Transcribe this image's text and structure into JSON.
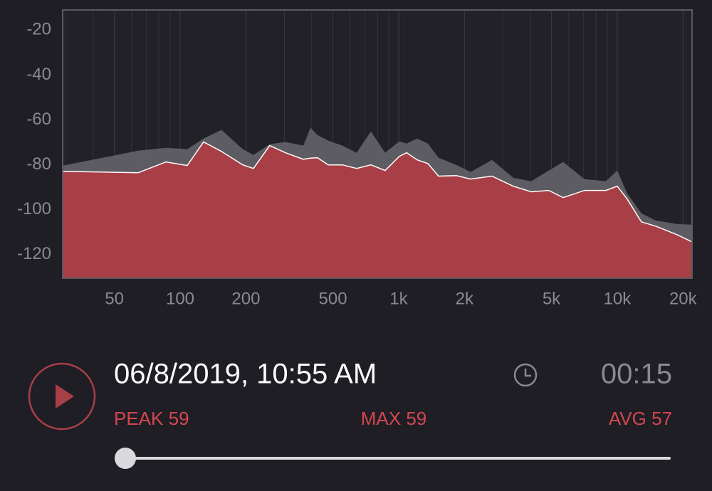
{
  "chart_data": {
    "type": "area",
    "xscale": "log",
    "xgrid": true,
    "ygrid": false,
    "xlim": [
      29,
      22000
    ],
    "ylim": [
      -130.5,
      -11
    ],
    "xticks": [
      {
        "value": 50,
        "label": "50"
      },
      {
        "value": 100,
        "label": "100"
      },
      {
        "value": 200,
        "label": "200"
      },
      {
        "value": 500,
        "label": "500"
      },
      {
        "value": 1000,
        "label": "1k"
      },
      {
        "value": 2000,
        "label": "2k"
      },
      {
        "value": 5000,
        "label": "5k"
      },
      {
        "value": 10000,
        "label": "10k"
      },
      {
        "value": 20000,
        "label": "20k"
      }
    ],
    "yticks": [
      -20,
      -40,
      -60,
      -80,
      -100,
      -120
    ],
    "x": [
      29.2,
      64.3,
      86.1,
      107.8,
      128,
      154.5,
      193.5,
      216.5,
      257,
      303,
      366,
      395,
      425,
      476,
      553,
      642,
      746,
      867,
      1007,
      1087,
      1216,
      1360,
      1521,
      1835,
      2133,
      2671,
      3345,
      4036,
      4865,
      5655,
      7080,
      8870,
      10000,
      11100,
      12900,
      15000,
      18780,
      22000
    ],
    "series": [
      {
        "color": "#5d5c62",
        "values": [
          -80.3,
          -73.7,
          -72.4,
          -73,
          -68.3,
          -64.4,
          -73,
          -75.6,
          -70.8,
          -69.8,
          -71.4,
          -63.5,
          -66.7,
          -69.2,
          -71.4,
          -74.6,
          -65.1,
          -74.6,
          -69.5,
          -70.5,
          -68.3,
          -70.5,
          -76.8,
          -80,
          -83.2,
          -77.8,
          -85.7,
          -87.3,
          -82.5,
          -78.7,
          -86.3,
          -87.3,
          -82.5,
          -92.7,
          -101.6,
          -104.8,
          -106.3,
          -106.7
        ]
      },
      {
        "color": "#a83f47",
        "stroke": "#ffffff",
        "values": [
          -82.9,
          -83.5,
          -78.7,
          -80.3,
          -69.8,
          -74,
          -80,
          -81.6,
          -71.4,
          -74.6,
          -77.5,
          -77,
          -76.8,
          -80,
          -80,
          -81.6,
          -80,
          -82.5,
          -76.2,
          -74.6,
          -77.8,
          -79.4,
          -85,
          -84.8,
          -86.3,
          -85,
          -89.5,
          -92,
          -91.4,
          -94.6,
          -91.4,
          -91.4,
          -89.5,
          -95.2,
          -105.4,
          -107.3,
          -111.1,
          -114.3
        ]
      }
    ]
  },
  "player": {
    "date": "06/8/2019, 10:55 AM",
    "duration": "00:15",
    "stats": [
      {
        "label": "PEAK",
        "value": 59
      },
      {
        "label": "MAX",
        "value": 59
      },
      {
        "label": "AVG",
        "value": 57
      }
    ]
  }
}
